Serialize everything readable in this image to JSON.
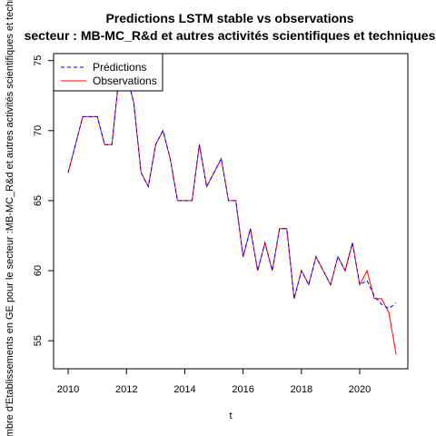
{
  "chart_data": {
    "type": "line",
    "title": "Predictions LSTM stable vs observations",
    "subtitle": "secteur : MB-MC_R&d et autres activités scientifiques et techniques",
    "xlabel": "t",
    "ylabel": "Nombre d'Etablissements en GE pour le secteur :MB-MC_R&d et autres activités scientifiques et techniques",
    "xlim": [
      2009.5,
      2021.65
    ],
    "ylim": [
      53.0,
      75.5
    ],
    "x_ticks": [
      2010,
      2012,
      2014,
      2016,
      2018,
      2020
    ],
    "y_ticks": [
      55,
      60,
      65,
      70,
      75
    ],
    "legend_position": "top-left",
    "x": [
      2010.0,
      2010.25,
      2010.5,
      2010.75,
      2011.0,
      2011.25,
      2011.5,
      2011.75,
      2012.0,
      2012.25,
      2012.5,
      2012.75,
      2013.0,
      2013.25,
      2013.5,
      2013.75,
      2014.0,
      2014.25,
      2014.5,
      2014.75,
      2015.0,
      2015.25,
      2015.5,
      2015.75,
      2016.0,
      2016.25,
      2016.5,
      2016.75,
      2017.0,
      2017.25,
      2017.5,
      2017.75,
      2018.0,
      2018.25,
      2018.5,
      2018.75,
      2019.0,
      2019.25,
      2019.5,
      2019.75,
      2020.0,
      2020.25,
      2020.5,
      2020.75,
      2021.0,
      2021.25
    ],
    "series": [
      {
        "name": "Prédictions",
        "color": "#0000ff",
        "dash": "dashed",
        "values": [
          67,
          69,
          71,
          71,
          71,
          69,
          69,
          74,
          74,
          72,
          67,
          66,
          69,
          70,
          68,
          65,
          65,
          65,
          69,
          66,
          67,
          68,
          65,
          65,
          61,
          63,
          60,
          62,
          60,
          63,
          63,
          58,
          60,
          59,
          61,
          60,
          59,
          61,
          60,
          62,
          59,
          59.3,
          58.2,
          57.6,
          57.3,
          57.7
        ]
      },
      {
        "name": "Observations",
        "color": "#ff0000",
        "dash": "solid",
        "values": [
          67,
          69,
          71,
          71,
          71,
          69,
          69,
          74,
          74,
          72,
          67,
          66,
          69,
          70,
          68,
          65,
          65,
          65,
          69,
          66,
          67,
          68,
          65,
          65,
          61,
          63,
          60,
          62,
          60,
          63,
          63,
          58,
          60,
          59,
          61,
          60,
          59,
          61,
          60,
          62,
          59,
          60,
          58,
          58,
          57,
          54
        ]
      }
    ]
  }
}
